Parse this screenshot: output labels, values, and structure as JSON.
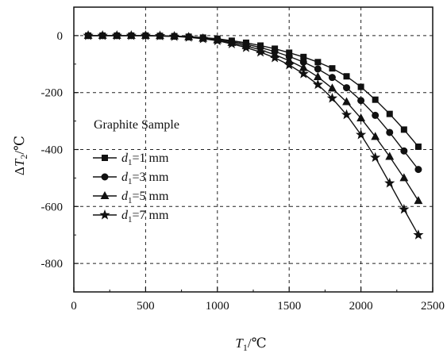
{
  "chart_data": {
    "type": "line",
    "title": "",
    "xlabel": {
      "var": "T",
      "sub": "1",
      "unit": "/℃"
    },
    "ylabel": {
      "prefix": "Δ",
      "var": "T",
      "sub": "2",
      "unit": "/℃"
    },
    "xlim": [
      0,
      2500
    ],
    "ylim": [
      -900,
      100
    ],
    "x_ticks": [
      0,
      500,
      1000,
      1500,
      2000,
      2500
    ],
    "y_ticks": [
      0,
      -200,
      -400,
      -600,
      -800
    ],
    "x_tick_labels": [
      "0",
      "500",
      "1000",
      "1500",
      "2000",
      "2500"
    ],
    "y_tick_labels": [
      "0",
      "-200",
      "-400",
      "-600",
      "-800"
    ],
    "grid": "dashed",
    "legend_placement": "left",
    "annotation": "Graphite Sample",
    "x": [
      100,
      200,
      300,
      400,
      500,
      600,
      700,
      800,
      900,
      1000,
      1100,
      1200,
      1300,
      1400,
      1500,
      1600,
      1700,
      1800,
      1900,
      2000,
      2100,
      2200,
      2300,
      2400
    ],
    "series": [
      {
        "name": "d1=1 mm",
        "label_var": "d",
        "label_sub": "1",
        "label_rest": "=1 mm",
        "marker": "square",
        "values": [
          0,
          0,
          0,
          0,
          0,
          -1,
          -2,
          -4,
          -7,
          -11,
          -18,
          -25,
          -35,
          -46,
          -60,
          -75,
          -93,
          -115,
          -143,
          -180,
          -225,
          -275,
          -330,
          -390
        ]
      },
      {
        "name": "d1=3 mm",
        "label_var": "d",
        "label_sub": "1",
        "label_rest": "=3 mm",
        "marker": "circle",
        "values": [
          0,
          0,
          0,
          0,
          0,
          -1,
          -2,
          -4,
          -8,
          -13,
          -21,
          -30,
          -42,
          -56,
          -73,
          -93,
          -117,
          -147,
          -183,
          -228,
          -280,
          -340,
          -405,
          -470
        ]
      },
      {
        "name": "d1=5 mm",
        "label_var": "d",
        "label_sub": "1",
        "label_rest": "=5 mm",
        "marker": "triangle",
        "values": [
          0,
          0,
          0,
          0,
          0,
          -1,
          -2,
          -5,
          -10,
          -16,
          -25,
          -36,
          -50,
          -67,
          -88,
          -113,
          -145,
          -185,
          -233,
          -290,
          -355,
          -425,
          -500,
          -580
        ]
      },
      {
        "name": "d1=7 mm",
        "label_var": "d",
        "label_sub": "1",
        "label_rest": "=7 mm",
        "marker": "star",
        "values": [
          0,
          0,
          0,
          0,
          0,
          -1,
          -3,
          -6,
          -11,
          -18,
          -29,
          -42,
          -58,
          -78,
          -103,
          -134,
          -172,
          -220,
          -278,
          -348,
          -428,
          -518,
          -610,
          -700
        ]
      }
    ]
  }
}
